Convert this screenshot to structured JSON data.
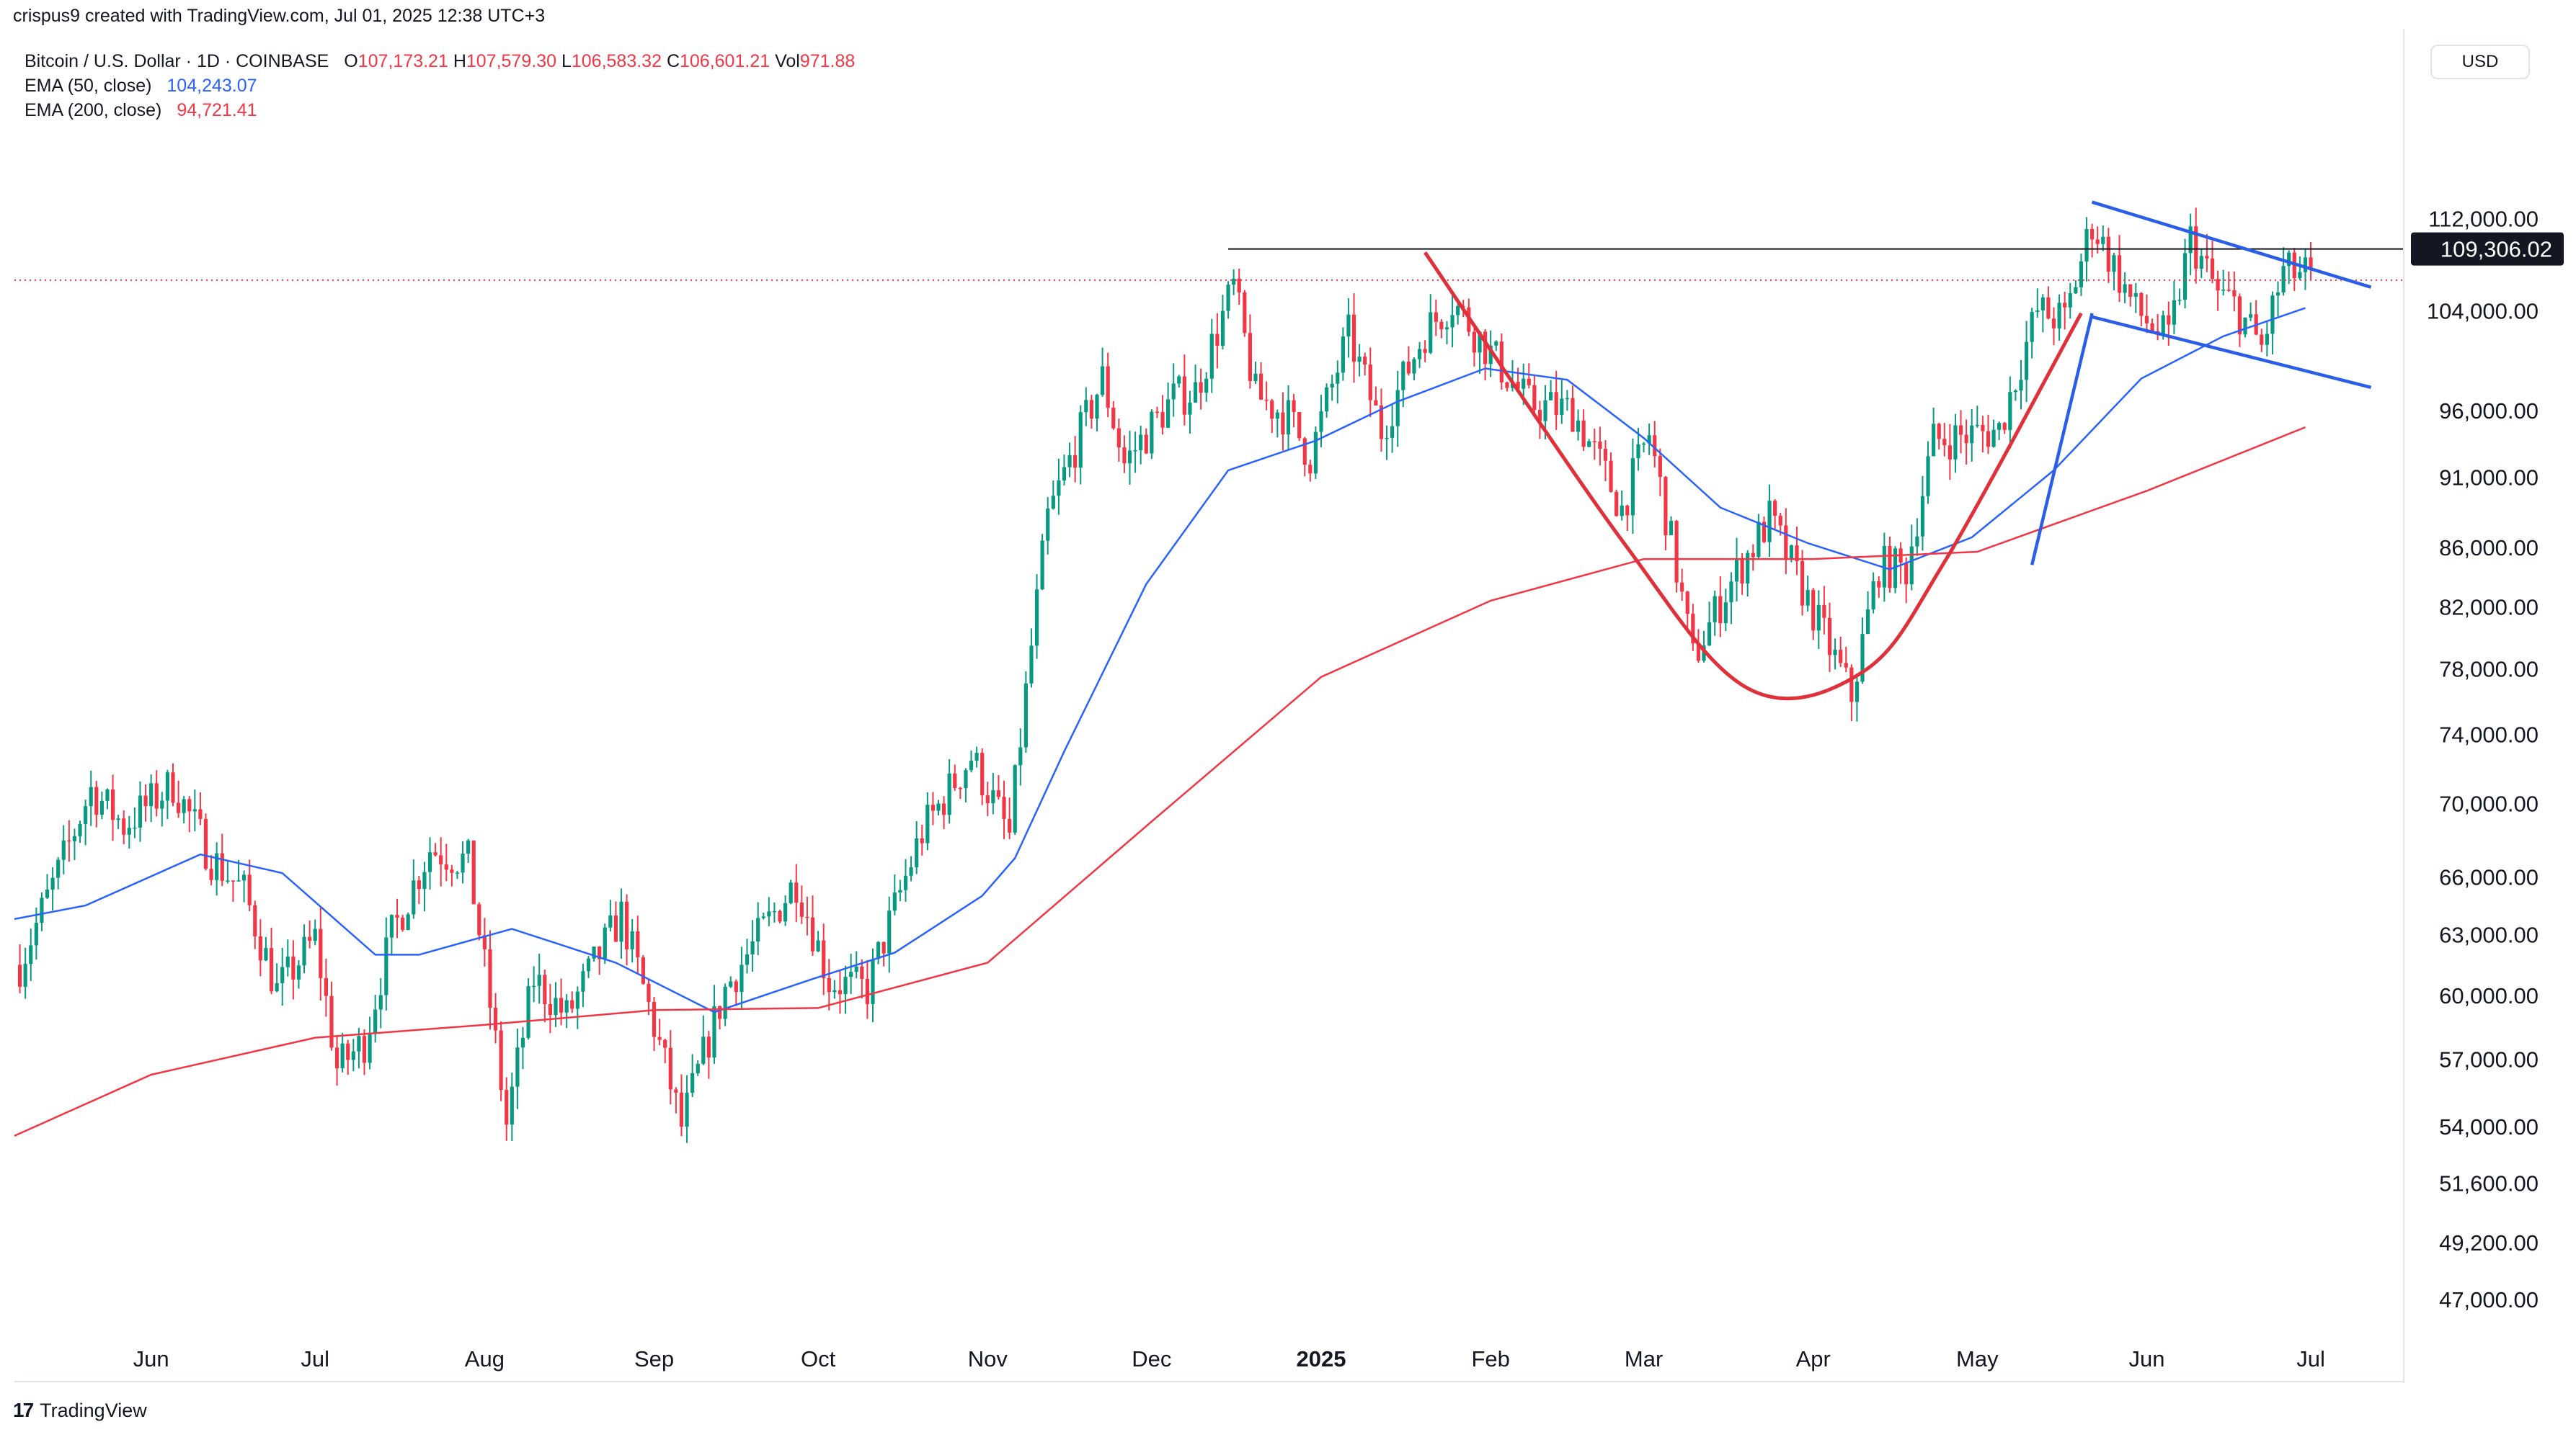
{
  "header": {
    "attribution": "crispus9 created with TradingView.com, Jul 01, 2025 12:38 UTC+3",
    "symbol": "Bitcoin / U.S. Dollar · 1D · COINBASE",
    "open_label": "O",
    "open": "107,173.21",
    "high_label": "H",
    "high": "107,579.30",
    "low_label": "L",
    "low": "106,583.32",
    "close_label": "C",
    "close": "106,601.21",
    "vol_label": "Vol",
    "vol": "971.88",
    "ema50_label": "EMA (50, close)",
    "ema50_value": "104,243.07",
    "ema200_label": "EMA (200, close)",
    "ema200_value": "94,721.41",
    "currency_button": "USD"
  },
  "footer": {
    "logo_mark": "17",
    "brand": "TradingView"
  },
  "colors": {
    "up": "#089981",
    "down": "#f23645",
    "ema50": "#2962ff",
    "ema200": "#f23645",
    "pattern_red": "#e0303a",
    "pattern_blue": "#2a5ee8",
    "resistance": "#131722"
  },
  "chart_data": {
    "type": "candlestick",
    "y_scale": "log",
    "ylim": [
      45500,
      121000
    ],
    "x_range": [
      "2024-05-07",
      "2025-07-18"
    ],
    "y_ticks": [
      {
        "value": 112000,
        "label": "112,000.00"
      },
      {
        "value": 104000,
        "label": "104,000.00"
      },
      {
        "value": 96000,
        "label": "96,000.00"
      },
      {
        "value": 91000,
        "label": "91,000.00"
      },
      {
        "value": 86000,
        "label": "86,000.00"
      },
      {
        "value": 82000,
        "label": "82,000.00"
      },
      {
        "value": 78000,
        "label": "78,000.00"
      },
      {
        "value": 74000,
        "label": "74,000.00"
      },
      {
        "value": 70000,
        "label": "70,000.00"
      },
      {
        "value": 66000,
        "label": "66,000.00"
      },
      {
        "value": 63000,
        "label": "63,000.00"
      },
      {
        "value": 60000,
        "label": "60,000.00"
      },
      {
        "value": 57000,
        "label": "57,000.00"
      },
      {
        "value": 54000,
        "label": "54,000.00"
      },
      {
        "value": 51600,
        "label": "51,600.00"
      },
      {
        "value": 49200,
        "label": "49,200.00"
      },
      {
        "value": 47000,
        "label": "47,000.00"
      }
    ],
    "x_ticks": [
      {
        "date": "2024-06-01",
        "label": "Jun",
        "bold": false
      },
      {
        "date": "2024-07-01",
        "label": "Jul",
        "bold": false
      },
      {
        "date": "2024-08-01",
        "label": "Aug",
        "bold": false
      },
      {
        "date": "2024-09-01",
        "label": "Sep",
        "bold": false
      },
      {
        "date": "2024-10-01",
        "label": "Oct",
        "bold": false
      },
      {
        "date": "2024-11-01",
        "label": "Nov",
        "bold": false
      },
      {
        "date": "2024-12-01",
        "label": "Dec",
        "bold": false
      },
      {
        "date": "2025-01-01",
        "label": "2025",
        "bold": true
      },
      {
        "date": "2025-02-01",
        "label": "Feb",
        "bold": false
      },
      {
        "date": "2025-03-01",
        "label": "Mar",
        "bold": false
      },
      {
        "date": "2025-04-01",
        "label": "Apr",
        "bold": false
      },
      {
        "date": "2025-05-01",
        "label": "May",
        "bold": false
      },
      {
        "date": "2025-06-01",
        "label": "Jun",
        "bold": false
      },
      {
        "date": "2025-07-01",
        "label": "Jul",
        "bold": false
      }
    ],
    "close_anchors": [
      [
        "2024-05-08",
        61500
      ],
      [
        "2024-05-15",
        66200
      ],
      [
        "2024-05-21",
        70800
      ],
      [
        "2024-05-27",
        68800
      ],
      [
        "2024-06-05",
        71100
      ],
      [
        "2024-06-12",
        67000
      ],
      [
        "2024-06-18",
        65200
      ],
      [
        "2024-06-24",
        60200
      ],
      [
        "2024-07-01",
        62800
      ],
      [
        "2024-07-05",
        56600
      ],
      [
        "2024-07-10",
        57800
      ],
      [
        "2024-07-15",
        63000
      ],
      [
        "2024-07-22",
        67500
      ],
      [
        "2024-07-29",
        66800
      ],
      [
        "2024-08-05",
        54100
      ],
      [
        "2024-08-10",
        60800
      ],
      [
        "2024-08-16",
        59000
      ],
      [
        "2024-08-26",
        64000
      ],
      [
        "2024-09-06",
        54000
      ],
      [
        "2024-09-14",
        60300
      ],
      [
        "2024-09-27",
        65800
      ],
      [
        "2024-10-03",
        60700
      ],
      [
        "2024-10-10",
        60300
      ],
      [
        "2024-10-20",
        68400
      ],
      [
        "2024-10-29",
        72700
      ],
      [
        "2024-11-05",
        68200
      ],
      [
        "2024-11-08",
        76500
      ],
      [
        "2024-11-12",
        88000
      ],
      [
        "2024-11-22",
        98500
      ],
      [
        "2024-11-26",
        92000
      ],
      [
        "2024-12-05",
        97000
      ],
      [
        "2024-12-09",
        97500
      ],
      [
        "2024-12-16",
        106000
      ],
      [
        "2024-12-20",
        97200
      ],
      [
        "2024-12-26",
        95500
      ],
      [
        "2024-12-30",
        92500
      ],
      [
        "2025-01-06",
        102000
      ],
      [
        "2025-01-12",
        94500
      ],
      [
        "2025-01-20",
        102300
      ],
      [
        "2025-01-25",
        104800
      ],
      [
        "2025-02-01",
        100500
      ],
      [
        "2025-02-08",
        96500
      ],
      [
        "2025-02-16",
        96000
      ],
      [
        "2025-02-25",
        88700
      ],
      [
        "2025-03-02",
        94200
      ],
      [
        "2025-03-10",
        78600
      ],
      [
        "2025-03-16",
        83000
      ],
      [
        "2025-03-24",
        88000
      ],
      [
        "2025-03-31",
        82400
      ],
      [
        "2025-04-08",
        76300
      ],
      [
        "2025-04-13",
        84700
      ],
      [
        "2025-04-18",
        84500
      ],
      [
        "2025-04-23",
        93700
      ],
      [
        "2025-05-05",
        94500
      ],
      [
        "2025-05-12",
        104000
      ],
      [
        "2025-05-17",
        103200
      ],
      [
        "2025-05-22",
        111600
      ],
      [
        "2025-05-30",
        104000
      ],
      [
        "2025-06-05",
        101500
      ],
      [
        "2025-06-09",
        110200
      ],
      [
        "2025-06-14",
        105400
      ],
      [
        "2025-06-17",
        104500
      ],
      [
        "2025-06-22",
        101000
      ],
      [
        "2025-06-26",
        107300
      ],
      [
        "2025-06-30",
        107100
      ],
      [
        "2025-07-01",
        106601
      ]
    ],
    "series": [
      {
        "name": "EMA (50, close)",
        "values": [
          [
            "2024-05-07",
            63800
          ],
          [
            "2024-05-20",
            64500
          ],
          [
            "2024-06-10",
            67200
          ],
          [
            "2024-06-25",
            66200
          ],
          [
            "2024-07-12",
            62000
          ],
          [
            "2024-07-20",
            62000
          ],
          [
            "2024-08-06",
            63300
          ],
          [
            "2024-08-25",
            61600
          ],
          [
            "2024-09-12",
            59200
          ],
          [
            "2024-09-30",
            60800
          ],
          [
            "2024-10-15",
            62100
          ],
          [
            "2024-10-31",
            65000
          ],
          [
            "2024-11-06",
            67000
          ],
          [
            "2024-11-15",
            73000
          ],
          [
            "2024-11-30",
            83500
          ],
          [
            "2024-12-15",
            91500
          ],
          [
            "2024-12-31",
            93700
          ],
          [
            "2025-01-15",
            96700
          ],
          [
            "2025-01-31",
            99300
          ],
          [
            "2025-02-15",
            98400
          ],
          [
            "2025-03-01",
            93900
          ],
          [
            "2025-03-15",
            88800
          ],
          [
            "2025-03-31",
            86300
          ],
          [
            "2025-04-15",
            84500
          ],
          [
            "2025-04-30",
            86700
          ],
          [
            "2025-05-15",
            91500
          ],
          [
            "2025-05-31",
            98500
          ],
          [
            "2025-06-15",
            101900
          ],
          [
            "2025-06-30",
            104243
          ]
        ]
      },
      {
        "name": "EMA (200, close)",
        "values": [
          [
            "2024-05-07",
            53600
          ],
          [
            "2024-06-01",
            56300
          ],
          [
            "2024-07-01",
            58000
          ],
          [
            "2024-08-01",
            58600
          ],
          [
            "2024-09-01",
            59300
          ],
          [
            "2024-10-01",
            59400
          ],
          [
            "2024-11-01",
            61600
          ],
          [
            "2024-12-01",
            69000
          ],
          [
            "2025-01-01",
            77500
          ],
          [
            "2025-02-01",
            82400
          ],
          [
            "2025-03-01",
            85200
          ],
          [
            "2025-04-01",
            85200
          ],
          [
            "2025-05-01",
            85700
          ],
          [
            "2025-06-01",
            90000
          ],
          [
            "2025-06-30",
            94721
          ]
        ]
      }
    ],
    "price_tag": {
      "value": 109306.02,
      "label": "109,306.02"
    },
    "last_price": 106601.21,
    "annotations": {
      "resistance": [
        [
          "2024-12-15",
          109306
        ],
        [
          "2025-07-18",
          109306
        ]
      ],
      "cup": [
        [
          "2025-01-20",
          109000
        ],
        [
          "2025-02-25",
          86500
        ],
        [
          "2025-03-20",
          76800
        ],
        [
          "2025-04-10",
          77800
        ],
        [
          "2025-04-25",
          85000
        ],
        [
          "2025-05-20",
          103800
        ]
      ],
      "flagpole": [
        [
          "2025-05-11",
          84800
        ],
        [
          "2025-05-22",
          103800
        ]
      ],
      "flag_upper": [
        [
          "2025-05-22",
          113500
        ],
        [
          "2025-07-12",
          106000
        ]
      ],
      "flag_lower": [
        [
          "2025-05-22",
          103500
        ],
        [
          "2025-07-12",
          97800
        ]
      ]
    }
  }
}
